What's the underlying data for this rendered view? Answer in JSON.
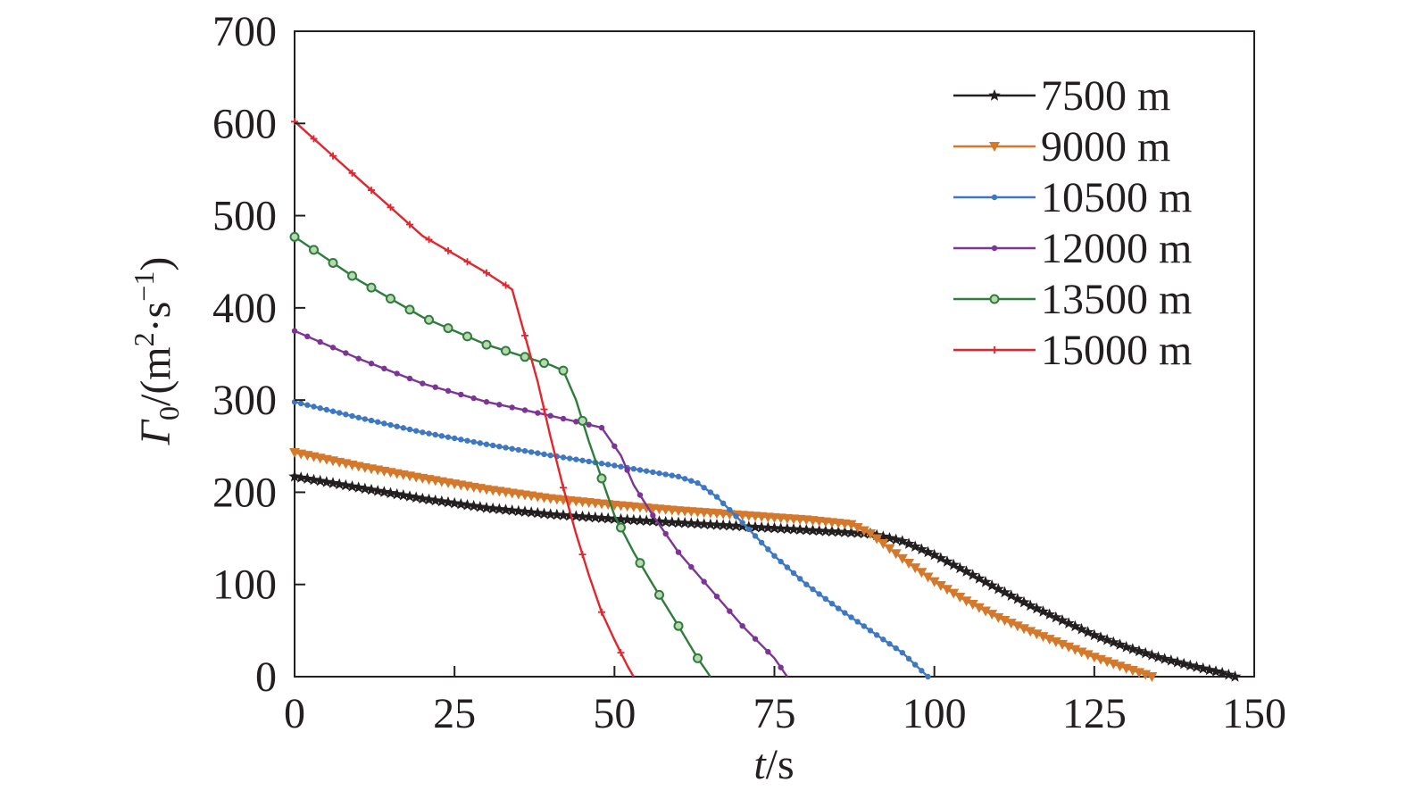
{
  "chart_data": {
    "type": "line",
    "xlabel": "t/s",
    "ylabel": "Γ0/(m2·s−1)",
    "xlabel_parts": {
      "var": "t",
      "unit": "/s"
    },
    "ylabel_parts": {
      "var": "Γ",
      "sub": "0",
      "unit_open": "/(m",
      "sup1": "2",
      "mid": "·s",
      "sup2": "−1",
      "close": ")"
    },
    "xlim": [
      0,
      150
    ],
    "ylim": [
      0,
      700
    ],
    "xticks": [
      0,
      25,
      50,
      75,
      100,
      125,
      150
    ],
    "yticks": [
      0,
      100,
      200,
      300,
      400,
      500,
      600,
      700
    ],
    "legend_position": "top-right",
    "grid": false,
    "series": [
      {
        "name": "7500 m",
        "color": "#231f20",
        "marker": "star",
        "marker_step": 1,
        "points": [
          [
            0,
            217
          ],
          [
            10,
            205
          ],
          [
            20,
            193
          ],
          [
            30,
            183
          ],
          [
            40,
            176
          ],
          [
            50,
            171
          ],
          [
            60,
            167
          ],
          [
            70,
            163
          ],
          [
            80,
            159
          ],
          [
            90,
            155
          ],
          [
            95,
            147
          ],
          [
            100,
            132
          ],
          [
            105,
            114
          ],
          [
            110,
            95
          ],
          [
            115,
            77
          ],
          [
            120,
            61
          ],
          [
            125,
            45
          ],
          [
            130,
            32
          ],
          [
            135,
            21
          ],
          [
            140,
            12
          ],
          [
            145,
            4
          ],
          [
            147,
            0
          ]
        ]
      },
      {
        "name": "9000 m",
        "color": "#d4782c",
        "marker": "triangle-down",
        "marker_step": 1,
        "points": [
          [
            0,
            243
          ],
          [
            10,
            228
          ],
          [
            20,
            215
          ],
          [
            30,
            203
          ],
          [
            40,
            193
          ],
          [
            50,
            186
          ],
          [
            60,
            180
          ],
          [
            70,
            175
          ],
          [
            80,
            170
          ],
          [
            87,
            165
          ],
          [
            90,
            155
          ],
          [
            95,
            128
          ],
          [
            100,
            103
          ],
          [
            105,
            82
          ],
          [
            110,
            64
          ],
          [
            115,
            49
          ],
          [
            120,
            35
          ],
          [
            125,
            21
          ],
          [
            130,
            9
          ],
          [
            134,
            0
          ]
        ]
      },
      {
        "name": "10500 m",
        "color": "#3f78c2",
        "marker": "dot",
        "marker_step": 1,
        "points": [
          [
            0,
            298
          ],
          [
            10,
            281
          ],
          [
            20,
            265
          ],
          [
            30,
            252
          ],
          [
            40,
            240
          ],
          [
            50,
            229
          ],
          [
            55,
            223
          ],
          [
            60,
            217
          ],
          [
            63,
            210
          ],
          [
            66,
            195
          ],
          [
            70,
            167
          ],
          [
            75,
            131
          ],
          [
            80,
            100
          ],
          [
            85,
            74
          ],
          [
            90,
            50
          ],
          [
            95,
            26
          ],
          [
            99,
            0
          ]
        ]
      },
      {
        "name": "12000 m",
        "color": "#7c3595",
        "marker": "dot",
        "marker_step": 2,
        "points": [
          [
            0,
            375
          ],
          [
            10,
            345
          ],
          [
            20,
            318
          ],
          [
            30,
            298
          ],
          [
            40,
            283
          ],
          [
            45,
            275
          ],
          [
            48,
            270
          ],
          [
            51,
            240
          ],
          [
            53,
            208
          ],
          [
            56,
            175
          ],
          [
            60,
            135
          ],
          [
            65,
            95
          ],
          [
            70,
            55
          ],
          [
            75,
            20
          ],
          [
            77,
            0
          ]
        ]
      },
      {
        "name": "13500 m",
        "color": "#2f7d3d",
        "marker": "circle",
        "marker_step": 3,
        "points": [
          [
            0,
            477
          ],
          [
            10,
            430
          ],
          [
            20,
            390
          ],
          [
            30,
            360
          ],
          [
            40,
            338
          ],
          [
            42,
            332
          ],
          [
            44,
            300
          ],
          [
            46,
            255
          ],
          [
            48,
            215
          ],
          [
            50,
            175
          ],
          [
            53,
            135
          ],
          [
            56,
            100
          ],
          [
            60,
            55
          ],
          [
            63,
            20
          ],
          [
            65,
            0
          ]
        ]
      },
      {
        "name": "15000 m",
        "color": "#e0262e",
        "marker": "plus",
        "marker_step": 3,
        "points": [
          [
            0,
            602
          ],
          [
            10,
            540
          ],
          [
            20,
            478
          ],
          [
            30,
            438
          ],
          [
            34,
            420
          ],
          [
            36,
            370
          ],
          [
            38,
            320
          ],
          [
            40,
            260
          ],
          [
            42,
            205
          ],
          [
            44,
            155
          ],
          [
            46,
            110
          ],
          [
            48,
            70
          ],
          [
            50,
            40
          ],
          [
            52,
            12
          ],
          [
            53,
            0
          ]
        ]
      }
    ]
  }
}
